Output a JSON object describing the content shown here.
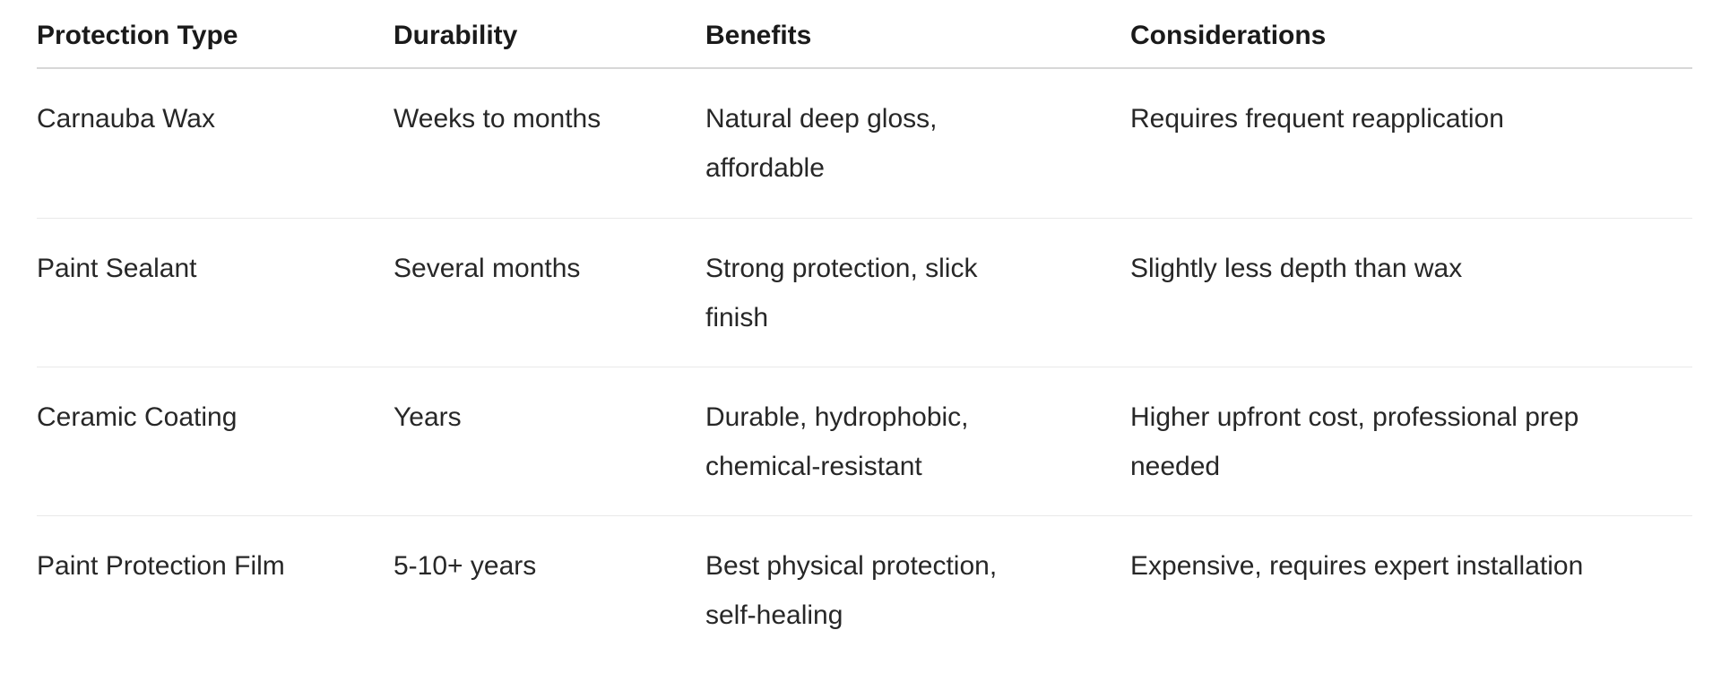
{
  "table": {
    "headers": [
      "Protection Type",
      "Durability",
      "Benefits",
      "Considerations"
    ],
    "rows": [
      {
        "cells": [
          "Carnauba Wax",
          "Weeks to months",
          "Natural deep gloss,\naffordable",
          "Requires frequent reapplication"
        ]
      },
      {
        "cells": [
          "Paint Sealant",
          "Several months",
          "Strong protection, slick\nfinish",
          "Slightly less depth than wax"
        ]
      },
      {
        "cells": [
          "Ceramic Coating",
          "Years",
          "Durable, hydrophobic,\nchemical-resistant",
          "Higher upfront cost, professional prep\nneeded"
        ]
      },
      {
        "cells": [
          "Paint Protection Film",
          "5-10+ years",
          "Best physical protection,\nself-healing",
          "Expensive, requires expert installation"
        ]
      }
    ]
  },
  "colors": {
    "header_text": "#1a1a1a",
    "body_text": "#272727",
    "header_divider": "#d7d7d7",
    "row_divider": "#e9e9e9",
    "background": "#ffffff"
  },
  "chart_data": {
    "type": "table",
    "title": "",
    "columns": [
      "Protection Type",
      "Durability",
      "Benefits",
      "Considerations"
    ],
    "rows": [
      [
        "Carnauba Wax",
        "Weeks to months",
        "Natural deep gloss, affordable",
        "Requires frequent reapplication"
      ],
      [
        "Paint Sealant",
        "Several months",
        "Strong protection, slick finish",
        "Slightly less depth than wax"
      ],
      [
        "Ceramic Coating",
        "Years",
        "Durable, hydrophobic, chemical-resistant",
        "Higher upfront cost, professional prep needed"
      ],
      [
        "Paint Protection Film",
        "5-10+ years",
        "Best physical protection, self-healing",
        "Expensive, requires expert installation"
      ]
    ],
    "legend_position": "none",
    "grid": "horizontal-row-dividers-only"
  }
}
